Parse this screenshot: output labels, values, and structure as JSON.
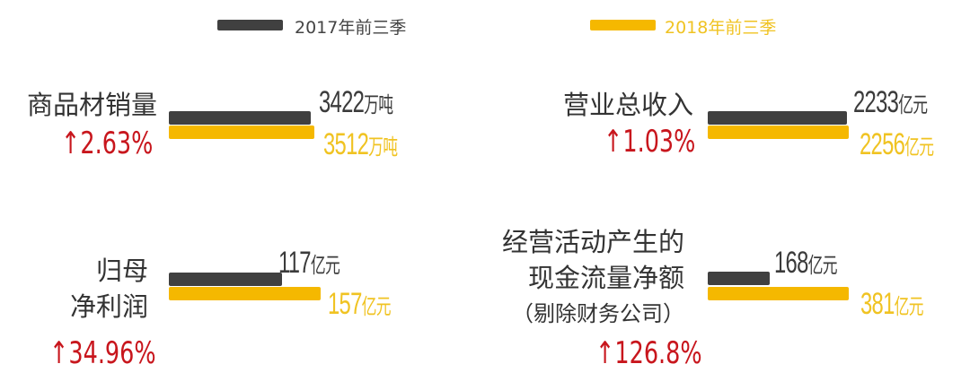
{
  "colors": {
    "y2017": "#404040",
    "y2018": "#f5b800",
    "increase": "#c8161d"
  },
  "chart_data": {
    "type": "bar",
    "legend": {
      "placement": "top",
      "entries": [
        "2017年前三季",
        "2018年前三季"
      ]
    },
    "panels": [
      {
        "label_lines": [
          "商品材销量"
        ],
        "v2017": 3422,
        "v2018": 3512,
        "v2017_text": "3422",
        "v2018_text": "3512",
        "unit": "万吨",
        "change": "↑2.63%"
      },
      {
        "label_lines": [
          "营业总收入"
        ],
        "v2017": 2233,
        "v2018": 2256,
        "v2017_text": "2233",
        "v2018_text": "2256",
        "unit": "亿元",
        "change": "↑1.03%"
      },
      {
        "label_lines": [
          "归母",
          "净利润"
        ],
        "v2017": 117,
        "v2018": 157,
        "v2017_text": "117",
        "v2018_text": "157",
        "unit": "亿元",
        "change": "↑34.96%"
      },
      {
        "label_lines": [
          "经营活动产生的",
          "现金流量净额",
          "（剔除财务公司）"
        ],
        "v2017": 168,
        "v2018": 381,
        "v2017_text": "168",
        "v2018_text": "381",
        "unit": "亿元",
        "change": "↑126.8%"
      }
    ]
  }
}
